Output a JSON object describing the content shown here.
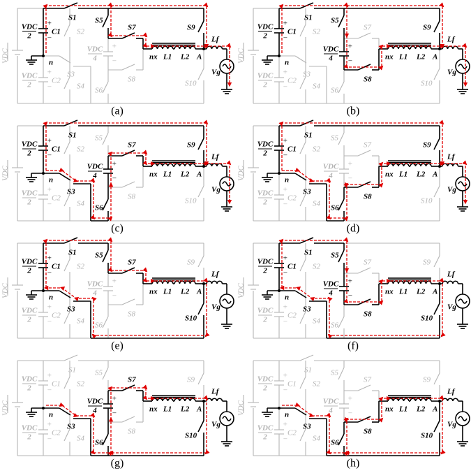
{
  "labels": {
    "sw1": "S1",
    "sw2": "S2",
    "sw3": "S3",
    "sw4": "S4",
    "sw5": "S5",
    "sw6": "S6",
    "sw7": "S7",
    "sw8": "S8",
    "sw9": "S9",
    "sw10": "S10",
    "cap1": "C1",
    "cap2": "C2",
    "node_n": "n",
    "node_nx": "nx",
    "ind1": "L1",
    "ind2": "L2",
    "node_a": "A",
    "ind_f": "Lf",
    "grid_v": "Vg",
    "vdc_src": "VDC",
    "vdc_half": {
      "num": "VDC",
      "den": "2"
    },
    "vdc_quarter": {
      "num": "VDC",
      "den": "4"
    },
    "plus": "+",
    "minus": "−"
  },
  "panels": [
    {
      "caption": "(a)"
    },
    {
      "caption": "(b)"
    },
    {
      "caption": "(c)"
    },
    {
      "caption": "(d)"
    },
    {
      "caption": "(e)"
    },
    {
      "caption": "(f)"
    },
    {
      "caption": "(g)"
    },
    {
      "caption": "(h)"
    }
  ]
}
